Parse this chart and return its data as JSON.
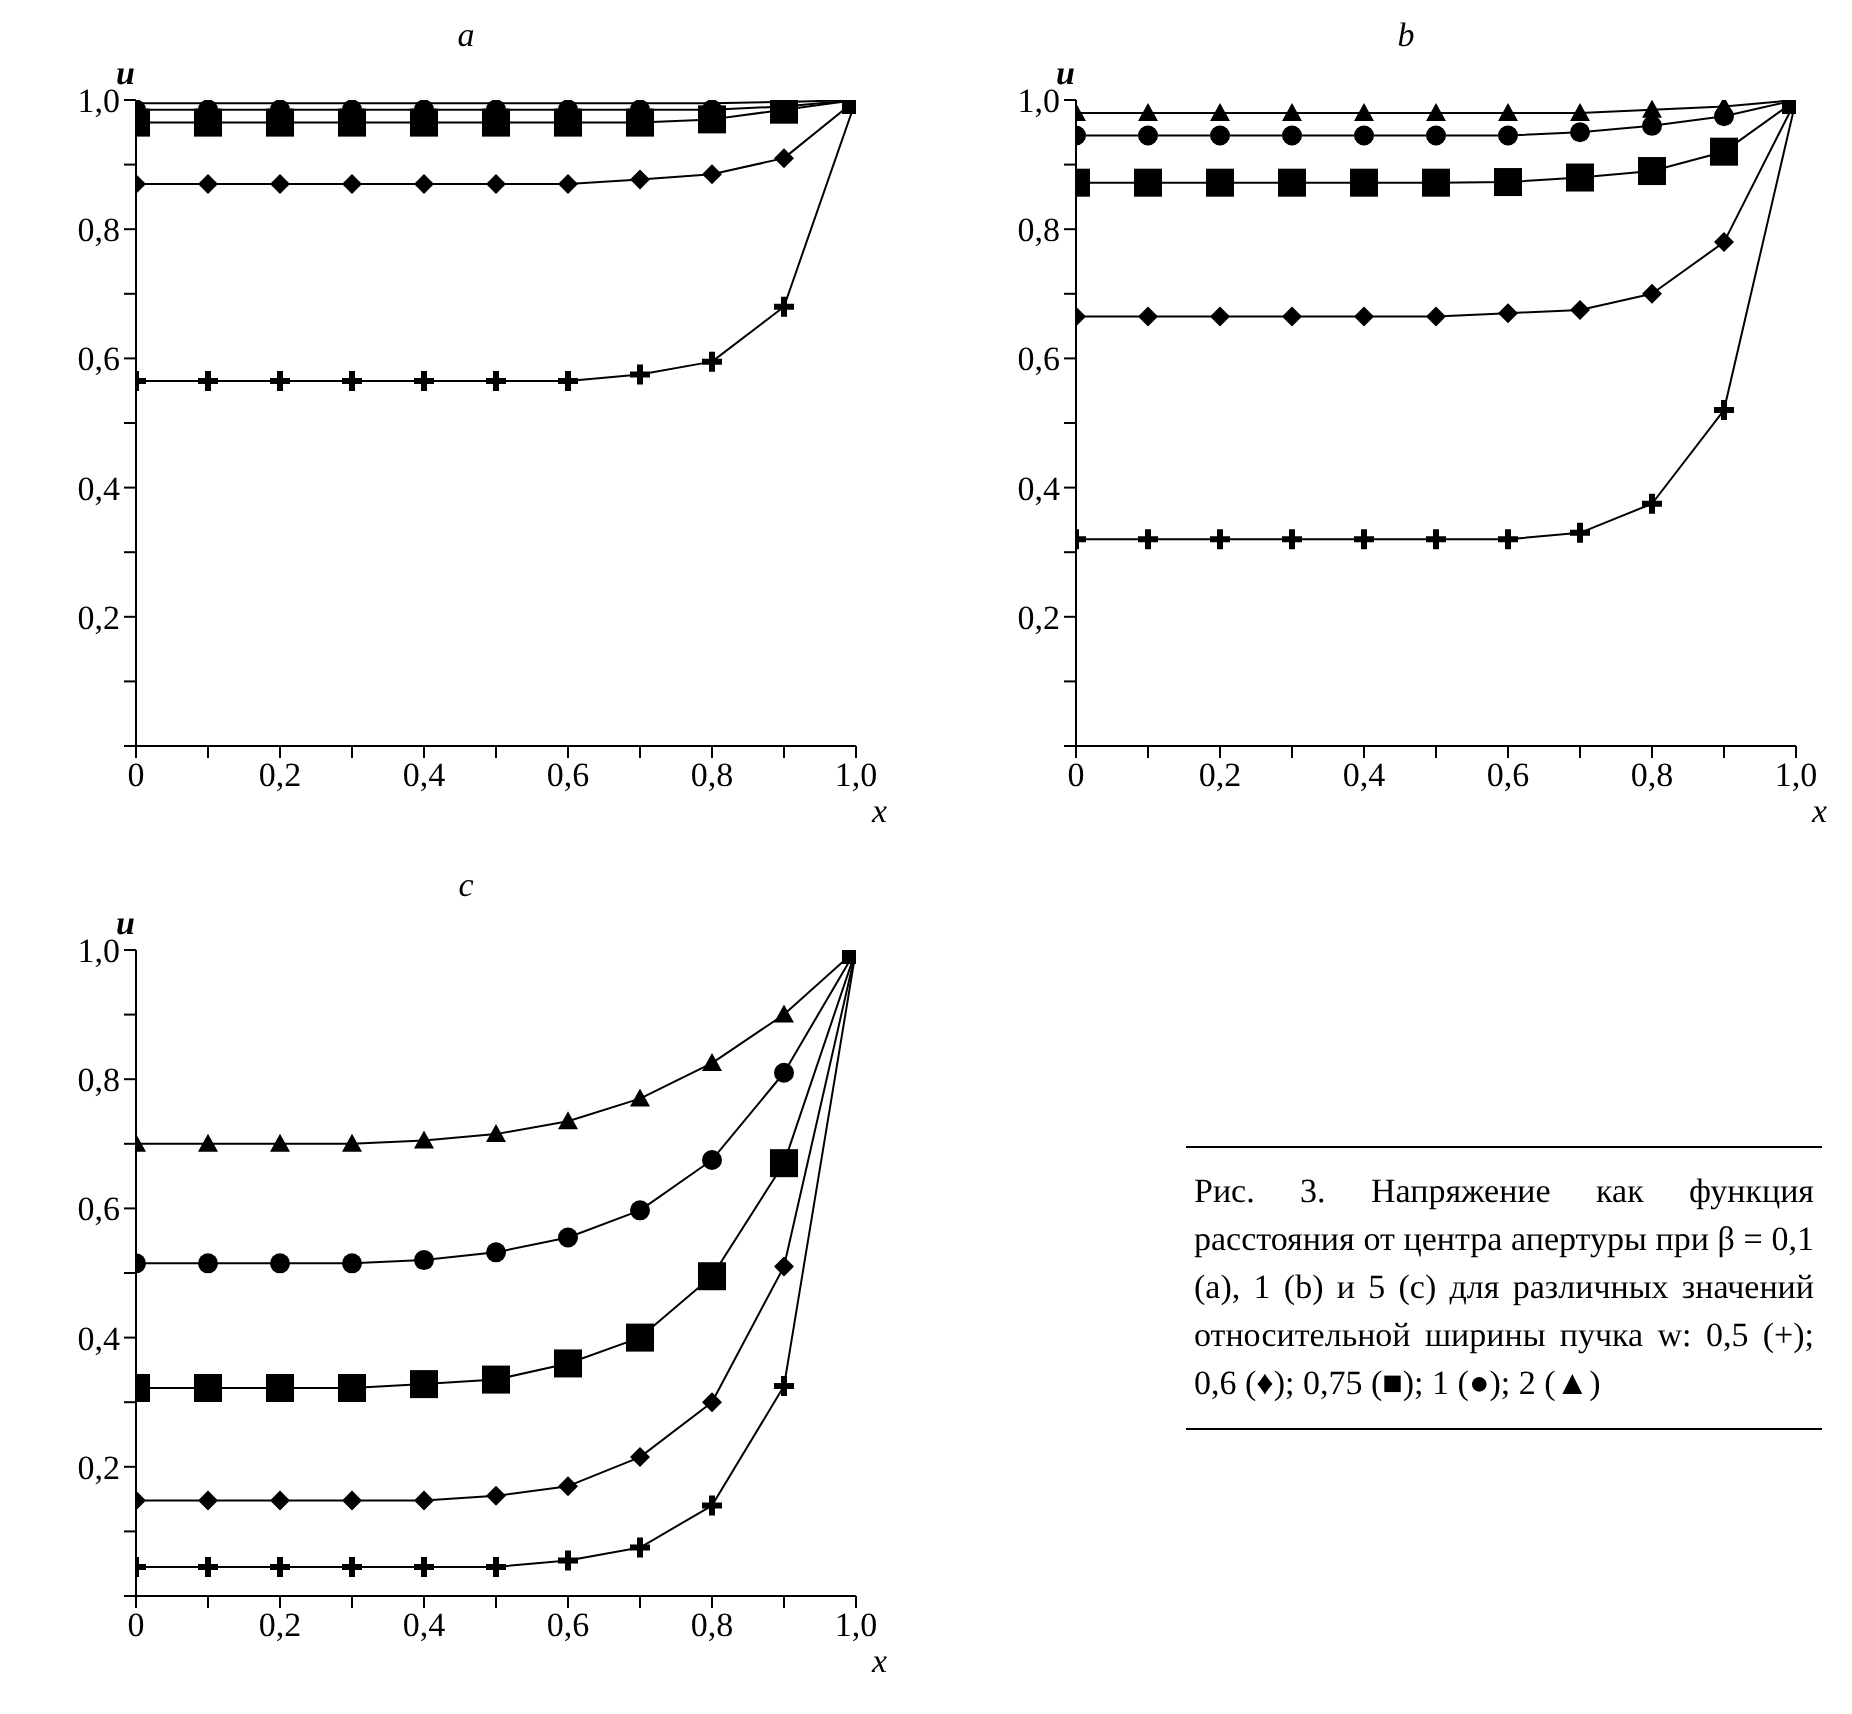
{
  "chart_data": [
    {
      "type": "line",
      "title": "a",
      "xlabel": "x",
      "ylabel": "u",
      "xlim": [
        0,
        1.0
      ],
      "ylim": [
        0,
        1.0
      ],
      "xticks": [
        {
          "value": 0,
          "label": "0"
        },
        {
          "value": 0.1,
          "label": null
        },
        {
          "value": 0.2,
          "label": "0,2"
        },
        {
          "value": 0.3,
          "label": null
        },
        {
          "value": 0.4,
          "label": "0,4"
        },
        {
          "value": 0.5,
          "label": null
        },
        {
          "value": 0.6,
          "label": "0,6"
        },
        {
          "value": 0.7,
          "label": null
        },
        {
          "value": 0.8,
          "label": "0,8"
        },
        {
          "value": 0.9,
          "label": null
        },
        {
          "value": 1.0,
          "label": "1,0"
        }
      ],
      "yticks": [
        {
          "value": 0,
          "label": null
        },
        {
          "value": 0.1,
          "label": null
        },
        {
          "value": 0.2,
          "label": "0,2"
        },
        {
          "value": 0.3,
          "label": null
        },
        {
          "value": 0.4,
          "label": "0,4"
        },
        {
          "value": 0.5,
          "label": null
        },
        {
          "value": 0.6,
          "label": "0,6"
        },
        {
          "value": 0.7,
          "label": null
        },
        {
          "value": 0.8,
          "label": "0,8"
        },
        {
          "value": 0.9,
          "label": null
        },
        {
          "value": 1.0,
          "label": "1,0"
        }
      ],
      "x": [
        0,
        0.1,
        0.2,
        0.3,
        0.4,
        0.5,
        0.6,
        0.7,
        0.8,
        0.9,
        1.0
      ],
      "series": [
        {
          "color": "#000000",
          "marker": "cross",
          "values": [
            0.565,
            0.565,
            0.565,
            0.565,
            0.565,
            0.565,
            0.565,
            0.575,
            0.595,
            0.68,
            1.0
          ]
        },
        {
          "color": "#000000",
          "marker": "diamond",
          "values": [
            0.87,
            0.87,
            0.87,
            0.87,
            0.87,
            0.87,
            0.87,
            0.877,
            0.885,
            0.91,
            1.0
          ]
        },
        {
          "color": "#000000",
          "marker": "square",
          "values": [
            0.965,
            0.965,
            0.965,
            0.965,
            0.965,
            0.965,
            0.965,
            0.965,
            0.97,
            0.985,
            1.0
          ]
        },
        {
          "color": "#000000",
          "marker": "circle",
          "values": [
            0.985,
            0.985,
            0.985,
            0.985,
            0.985,
            0.985,
            0.985,
            0.985,
            0.985,
            0.99,
            1.0
          ]
        },
        {
          "color": "#000000",
          "marker": "triangle",
          "values": [
            0.995,
            0.995,
            0.995,
            0.995,
            0.995,
            0.995,
            0.995,
            0.995,
            0.995,
            0.997,
            1.0
          ]
        }
      ]
    },
    {
      "type": "line",
      "title": "b",
      "xlabel": "x",
      "ylabel": "u",
      "xlim": [
        0,
        1.0
      ],
      "ylim": [
        0,
        1.0
      ],
      "xticks": [
        {
          "value": 0,
          "label": "0"
        },
        {
          "value": 0.1,
          "label": null
        },
        {
          "value": 0.2,
          "label": "0,2"
        },
        {
          "value": 0.3,
          "label": null
        },
        {
          "value": 0.4,
          "label": "0,4"
        },
        {
          "value": 0.5,
          "label": null
        },
        {
          "value": 0.6,
          "label": "0,6"
        },
        {
          "value": 0.7,
          "label": null
        },
        {
          "value": 0.8,
          "label": "0,8"
        },
        {
          "value": 0.9,
          "label": null
        },
        {
          "value": 1.0,
          "label": "1,0"
        }
      ],
      "yticks": [
        {
          "value": 0,
          "label": null
        },
        {
          "value": 0.1,
          "label": null
        },
        {
          "value": 0.2,
          "label": "0,2"
        },
        {
          "value": 0.3,
          "label": null
        },
        {
          "value": 0.4,
          "label": "0,4"
        },
        {
          "value": 0.5,
          "label": null
        },
        {
          "value": 0.6,
          "label": "0,6"
        },
        {
          "value": 0.7,
          "label": null
        },
        {
          "value": 0.8,
          "label": "0,8"
        },
        {
          "value": 0.9,
          "label": null
        },
        {
          "value": 1.0,
          "label": "1,0"
        }
      ],
      "x": [
        0,
        0.1,
        0.2,
        0.3,
        0.4,
        0.5,
        0.6,
        0.7,
        0.8,
        0.9,
        1.0
      ],
      "series": [
        {
          "color": "#000000",
          "marker": "cross",
          "values": [
            0.32,
            0.32,
            0.32,
            0.32,
            0.32,
            0.32,
            0.32,
            0.33,
            0.375,
            0.52,
            1.0
          ]
        },
        {
          "color": "#000000",
          "marker": "diamond",
          "values": [
            0.665,
            0.665,
            0.665,
            0.665,
            0.665,
            0.665,
            0.67,
            0.675,
            0.7,
            0.78,
            1.0
          ]
        },
        {
          "color": "#000000",
          "marker": "square",
          "values": [
            0.872,
            0.872,
            0.872,
            0.872,
            0.872,
            0.872,
            0.873,
            0.88,
            0.89,
            0.92,
            1.0
          ]
        },
        {
          "color": "#000000",
          "marker": "circle",
          "values": [
            0.945,
            0.945,
            0.945,
            0.945,
            0.945,
            0.945,
            0.945,
            0.95,
            0.96,
            0.975,
            1.0
          ]
        },
        {
          "color": "#000000",
          "marker": "triangle",
          "values": [
            0.98,
            0.98,
            0.98,
            0.98,
            0.98,
            0.98,
            0.98,
            0.98,
            0.985,
            0.99,
            1.0
          ]
        }
      ]
    },
    {
      "type": "line",
      "title": "c",
      "xlabel": "x",
      "ylabel": "u",
      "xlim": [
        0,
        1.0
      ],
      "ylim": [
        0,
        1.0
      ],
      "xticks": [
        {
          "value": 0,
          "label": "0"
        },
        {
          "value": 0.1,
          "label": null
        },
        {
          "value": 0.2,
          "label": "0,2"
        },
        {
          "value": 0.3,
          "label": null
        },
        {
          "value": 0.4,
          "label": "0,4"
        },
        {
          "value": 0.5,
          "label": null
        },
        {
          "value": 0.6,
          "label": "0,6"
        },
        {
          "value": 0.7,
          "label": null
        },
        {
          "value": 0.8,
          "label": "0,8"
        },
        {
          "value": 0.9,
          "label": null
        },
        {
          "value": 1.0,
          "label": "1,0"
        }
      ],
      "yticks": [
        {
          "value": 0,
          "label": null
        },
        {
          "value": 0.1,
          "label": null
        },
        {
          "value": 0.2,
          "label": "0,2"
        },
        {
          "value": 0.3,
          "label": null
        },
        {
          "value": 0.4,
          "label": "0,4"
        },
        {
          "value": 0.5,
          "label": null
        },
        {
          "value": 0.6,
          "label": "0,6"
        },
        {
          "value": 0.7,
          "label": null
        },
        {
          "value": 0.8,
          "label": "0,8"
        },
        {
          "value": 0.9,
          "label": null
        },
        {
          "value": 1.0,
          "label": "1,0"
        }
      ],
      "x": [
        0,
        0.1,
        0.2,
        0.3,
        0.4,
        0.5,
        0.6,
        0.7,
        0.8,
        0.9,
        1.0
      ],
      "series": [
        {
          "color": "#000000",
          "marker": "cross",
          "values": [
            0.045,
            0.045,
            0.045,
            0.045,
            0.045,
            0.045,
            0.055,
            0.075,
            0.14,
            0.325,
            1.0
          ]
        },
        {
          "color": "#000000",
          "marker": "diamond",
          "values": [
            0.148,
            0.148,
            0.148,
            0.148,
            0.148,
            0.155,
            0.17,
            0.215,
            0.3,
            0.51,
            1.0
          ]
        },
        {
          "color": "#000000",
          "marker": "square",
          "values": [
            0.322,
            0.322,
            0.322,
            0.322,
            0.328,
            0.335,
            0.36,
            0.4,
            0.495,
            0.67,
            1.0
          ]
        },
        {
          "color": "#000000",
          "marker": "circle",
          "values": [
            0.515,
            0.515,
            0.515,
            0.515,
            0.52,
            0.532,
            0.555,
            0.597,
            0.675,
            0.81,
            1.0
          ]
        },
        {
          "color": "#000000",
          "marker": "triangle",
          "values": [
            0.7,
            0.7,
            0.7,
            0.7,
            0.705,
            0.715,
            0.735,
            0.77,
            0.825,
            0.9,
            1.0
          ]
        }
      ]
    },
    {
      "type": "other",
      "annotations": [
        "Рис. 3. Напряжение как функция расстояния от центра апертуры при β = 0,1 (a), 1 (b) и 5 (c) для различных значений относительной ширины пучка w: 0,5 (+); 0,6 (♦); 0,75 (■); 1 (●); 2 (▲)"
      ]
    }
  ]
}
